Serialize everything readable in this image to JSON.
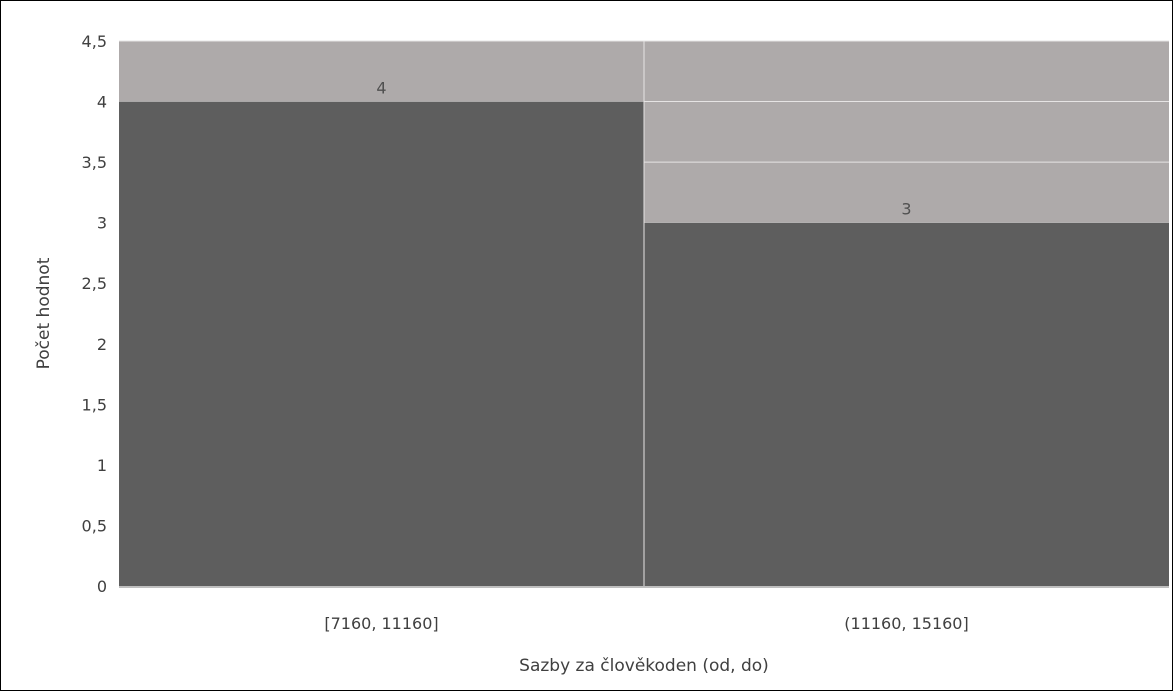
{
  "chart_data": {
    "type": "bar",
    "title": "",
    "xlabel": "Sazby za člověkoden (od, do)",
    "ylabel": "Počet hodnot",
    "categories": [
      "[7160, 11160]",
      "(11160, 15160]"
    ],
    "values": [
      4,
      3
    ],
    "data_labels": [
      "4",
      "3"
    ],
    "ylim": [
      0,
      4.5
    ],
    "yticks": [
      "0",
      "0,5",
      "1",
      "1,5",
      "2",
      "2,5",
      "3",
      "3,5",
      "4",
      "4,5"
    ],
    "ytick_values": [
      0,
      0.5,
      1,
      1.5,
      2,
      2.5,
      3,
      3.5,
      4,
      4.5
    ],
    "grid": true,
    "legend": "none",
    "colors": {
      "bar": "#5e5e5e",
      "plot_background": "#aeaaaa",
      "gridline": "#e6e4e4",
      "axis_text": "#404040",
      "data_label": "#505050"
    }
  }
}
